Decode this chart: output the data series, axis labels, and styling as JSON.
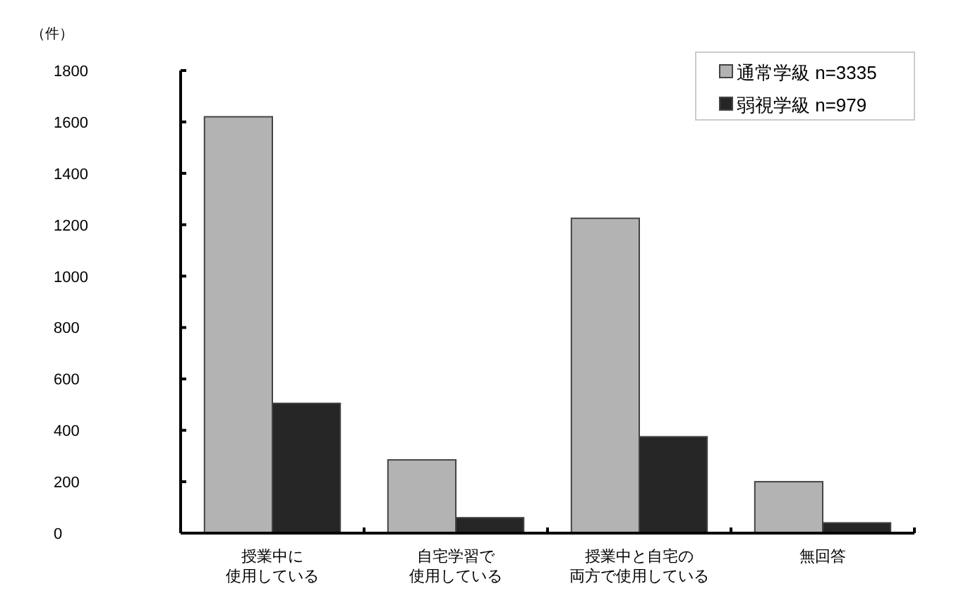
{
  "chart_data": {
    "type": "bar",
    "ylabel": "（件）",
    "categories": [
      "授業中に使用している",
      "自宅学習で使用している",
      "授業中と自宅の両方で使用している",
      "無回答"
    ],
    "series": [
      {
        "name": "通常学級  n=3335",
        "color": "#b3b3b3",
        "values": [
          1620,
          285,
          1225,
          200
        ]
      },
      {
        "name": "弱視学級  n=979",
        "color": "#262626",
        "values": [
          505,
          60,
          375,
          40
        ]
      }
    ],
    "ylim": [
      0,
      1800
    ],
    "yticks": [
      0,
      200,
      400,
      600,
      800,
      1000,
      1200,
      1400,
      1600,
      1800
    ],
    "grid": false,
    "legend": "top right"
  }
}
